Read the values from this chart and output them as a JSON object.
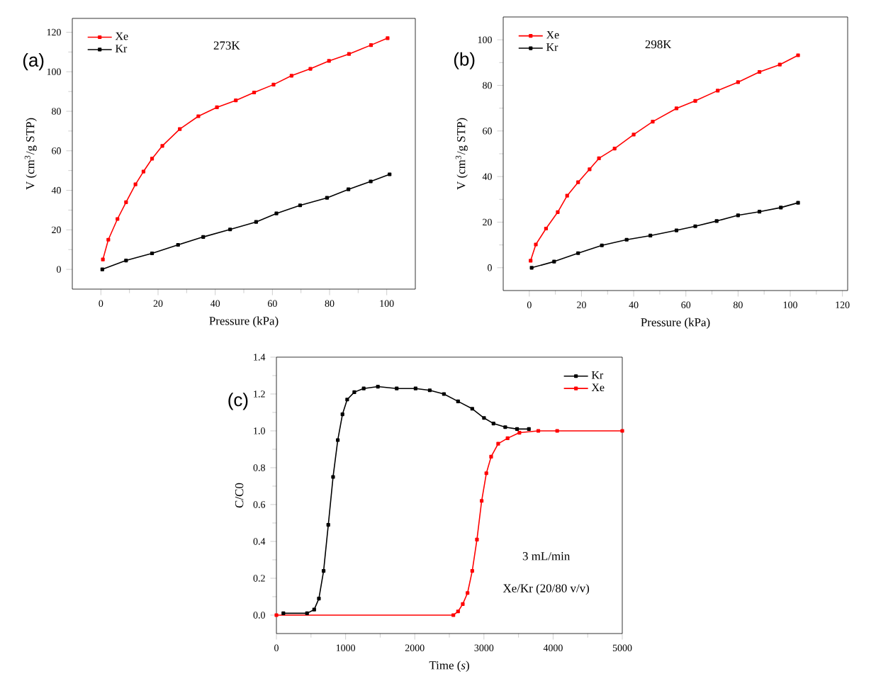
{
  "chart_data": [
    {
      "type": "line",
      "title": "(a)",
      "xlabel": "Pressure (kPa)",
      "ylabel": "V (cm$^{3}$/g STP)",
      "annotations": [
        "273K"
      ],
      "xlim": [
        -10,
        110
      ],
      "ylim": [
        -10,
        127
      ],
      "xticks": [
        0,
        20,
        40,
        60,
        80,
        100
      ],
      "yticks": [
        0,
        20,
        40,
        60,
        80,
        100,
        120
      ],
      "legend": "top left",
      "marker": "square",
      "grid": false,
      "series": [
        {
          "name": "Xe",
          "color": "#ff0000",
          "x": [
            0.7,
            2.6,
            5.8,
            8.8,
            12.1,
            14.9,
            17.9,
            21.5,
            27.6,
            34.1,
            40.6,
            47.2,
            53.6,
            60.4,
            66.7,
            73.3,
            79.8,
            86.8,
            94.5,
            100.3
          ],
          "values": [
            5,
            15,
            25.5,
            34,
            43,
            49.5,
            56,
            62.5,
            71,
            77.5,
            82,
            85.5,
            89.5,
            93.5,
            98,
            101.5,
            105.5,
            109,
            113.5,
            117
          ]
        },
        {
          "name": "Kr",
          "color": "#000000",
          "x": [
            0.5,
            8.8,
            17.9,
            27,
            35.8,
            45.2,
            54.3,
            61.4,
            69.7,
            79.1,
            86.6,
            94.4,
            101
          ],
          "values": [
            0,
            4.5,
            8.1,
            12.4,
            16.4,
            20.2,
            24,
            28.3,
            32.4,
            36.2,
            40.5,
            44.5,
            48.1
          ]
        }
      ]
    },
    {
      "type": "line",
      "title": "(b)",
      "xlabel": "Pressure (kPa)",
      "ylabel": "V (cm$^{3}$/g STP)",
      "annotations": [
        "298K"
      ],
      "xlim": [
        -10,
        122
      ],
      "ylim": [
        -10,
        110
      ],
      "xticks": [
        0,
        20,
        40,
        60,
        80,
        100,
        120
      ],
      "yticks": [
        0,
        20,
        40,
        60,
        80,
        100
      ],
      "legend": "top left",
      "marker": "square",
      "grid": false,
      "series": [
        {
          "name": "Xe",
          "color": "#ff0000",
          "x": [
            0.5,
            2.5,
            6.4,
            10.9,
            14.5,
            18.7,
            23.1,
            26.7,
            32.7,
            40,
            47.3,
            56.4,
            63.6,
            72.2,
            80,
            88.2,
            96,
            103
          ],
          "values": [
            3.1,
            10.2,
            17.2,
            24.4,
            31.6,
            37.5,
            43.2,
            48,
            52.3,
            58.4,
            64.1,
            69.9,
            73.2,
            77.7,
            81.4,
            85.9,
            89.1,
            93.2
          ]
        },
        {
          "name": "Kr",
          "color": "#000000",
          "x": [
            0.9,
            9.5,
            18.7,
            27.8,
            37.3,
            46.4,
            56.4,
            63.6,
            71.8,
            80,
            88.2,
            96.4,
            103
          ],
          "values": [
            0,
            2.7,
            6.4,
            9.8,
            12.3,
            14.1,
            16.4,
            18.2,
            20.5,
            23,
            24.6,
            26.4,
            28.5
          ]
        }
      ]
    },
    {
      "type": "line",
      "title": "(c)",
      "xlabel": "Time (*s*)",
      "ylabel": "C/C0",
      "annotations": [
        "3 mL/min",
        "Xe/Kr (20/80 v/v)"
      ],
      "xlim": [
        0,
        5000
      ],
      "ylim": [
        -0.1,
        1.4
      ],
      "xticks": [
        0,
        1000,
        2000,
        3000,
        4000,
        5000
      ],
      "yticks": [
        {
          "value": 0,
          "label": "0.0"
        },
        0.2,
        0.4,
        0.6,
        0.8,
        {
          "value": 1,
          "label": "1.0"
        },
        1.2,
        1.4
      ],
      "legend": "top right",
      "marker": "square",
      "grid": false,
      "series": [
        {
          "name": "Kr",
          "color": "#000000",
          "x": [
            100,
            443,
            546,
            614,
            682,
            750,
            819,
            887,
            955,
            1023,
            1126,
            1262,
            1467,
            1739,
            2012,
            2217,
            2422,
            2626,
            2831,
            3001,
            3138,
            3308,
            3479,
            3650
          ],
          "values": [
            0.01,
            0.01,
            0.03,
            0.09,
            0.24,
            0.49,
            0.75,
            0.95,
            1.09,
            1.17,
            1.21,
            1.23,
            1.24,
            1.23,
            1.23,
            1.22,
            1.2,
            1.16,
            1.12,
            1.07,
            1.04,
            1.02,
            1.01,
            1.01
          ]
        },
        {
          "name": "Xe",
          "color": "#ff0000",
          "x": [
            0,
            2558,
            2626,
            2694,
            2763,
            2831,
            2899,
            2967,
            3035,
            3104,
            3206,
            3342,
            3513,
            3786,
            4059,
            5000
          ],
          "values": [
            0,
            0,
            0.02,
            0.06,
            0.12,
            0.24,
            0.41,
            0.62,
            0.77,
            0.86,
            0.93,
            0.96,
            0.99,
            1.0,
            1.0,
            1.0
          ]
        }
      ]
    }
  ]
}
